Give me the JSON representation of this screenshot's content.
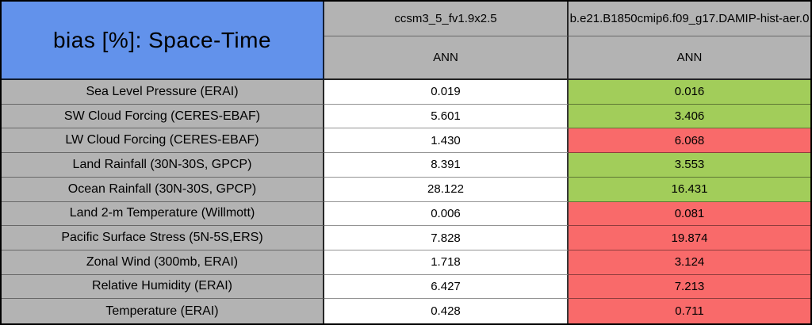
{
  "colors": {
    "title-bg": "#6292EB",
    "header-bg": "#B3B3B3",
    "better": "#A2CD5A",
    "worse": "#F96A6A",
    "neutral": "#FFFFFF"
  },
  "chart_data": {
    "type": "table",
    "title": "bias [%]: Space-Time",
    "unit": "%",
    "column_headers": [
      "ccsm3_5_fv1.9x2.5",
      "b.e21.B1850cmip6.f09_g17.DAMIP-hist-aer.0"
    ],
    "sub_headers": [
      "ANN",
      "ANN"
    ],
    "cell_color_legend": {
      "better": "#A2CD5A",
      "worse": "#F96A6A",
      "reference": "#FFFFFF"
    },
    "rows": [
      {
        "label": "Sea Level Pressure (ERAI)",
        "values": [
          "0.019",
          "0.016"
        ],
        "flag": "better"
      },
      {
        "label": "SW Cloud Forcing (CERES-EBAF)",
        "values": [
          "5.601",
          "3.406"
        ],
        "flag": "better"
      },
      {
        "label": "LW Cloud Forcing (CERES-EBAF)",
        "values": [
          "1.430",
          "6.068"
        ],
        "flag": "worse"
      },
      {
        "label": "Land Rainfall (30N-30S, GPCP)",
        "values": [
          "8.391",
          "3.553"
        ],
        "flag": "better"
      },
      {
        "label": "Ocean Rainfall (30N-30S, GPCP)",
        "values": [
          "28.122",
          "16.431"
        ],
        "flag": "better"
      },
      {
        "label": "Land 2-m Temperature (Willmott)",
        "values": [
          "0.006",
          "0.081"
        ],
        "flag": "worse"
      },
      {
        "label": "Pacific Surface Stress (5N-5S,ERS)",
        "values": [
          "7.828",
          "19.874"
        ],
        "flag": "worse"
      },
      {
        "label": "Zonal Wind (300mb, ERAI)",
        "values": [
          "1.718",
          "3.124"
        ],
        "flag": "worse"
      },
      {
        "label": "Relative Humidity (ERAI)",
        "values": [
          "6.427",
          "7.213"
        ],
        "flag": "worse"
      },
      {
        "label": "Temperature (ERAI)",
        "values": [
          "0.428",
          "0.711"
        ],
        "flag": "worse"
      }
    ]
  }
}
